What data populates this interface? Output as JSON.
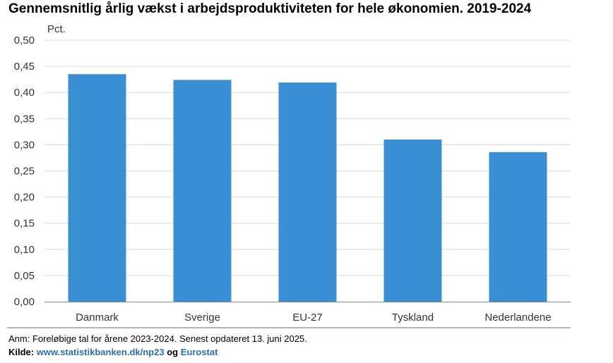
{
  "chart_data": {
    "type": "bar",
    "title": "Gennemsnitlig årlig vækst i arbejdsproduktiviteten for hele økonomien. 2019-2024",
    "ylabel": "Pct.",
    "xlabel": "",
    "categories": [
      "Danmark",
      "Sverige",
      "EU-27",
      "Tyskland",
      "Nederlandene"
    ],
    "values": [
      0.435,
      0.424,
      0.419,
      0.31,
      0.286
    ],
    "ylim": [
      0,
      0.5
    ],
    "yticks": [
      "0,00",
      "0,05",
      "0,10",
      "0,15",
      "0,20",
      "0,25",
      "0,30",
      "0,35",
      "0,40",
      "0,45",
      "0,50"
    ],
    "grid": true,
    "bar_color": "#3a8fd4",
    "grid_color": "#d9d9d9",
    "axis_color": "#8c8c8c"
  },
  "footer": {
    "note": "Anm: Foreløbige tal for årene 2023-2024. Senest opdateret 13. juni 2025.",
    "source_label": "Kilde: ",
    "source_link1": "www.statistikbanken.dk/np23",
    "source_joiner": " og ",
    "source_link2": "Eurostat",
    "link_color": "#2a6fb0"
  }
}
